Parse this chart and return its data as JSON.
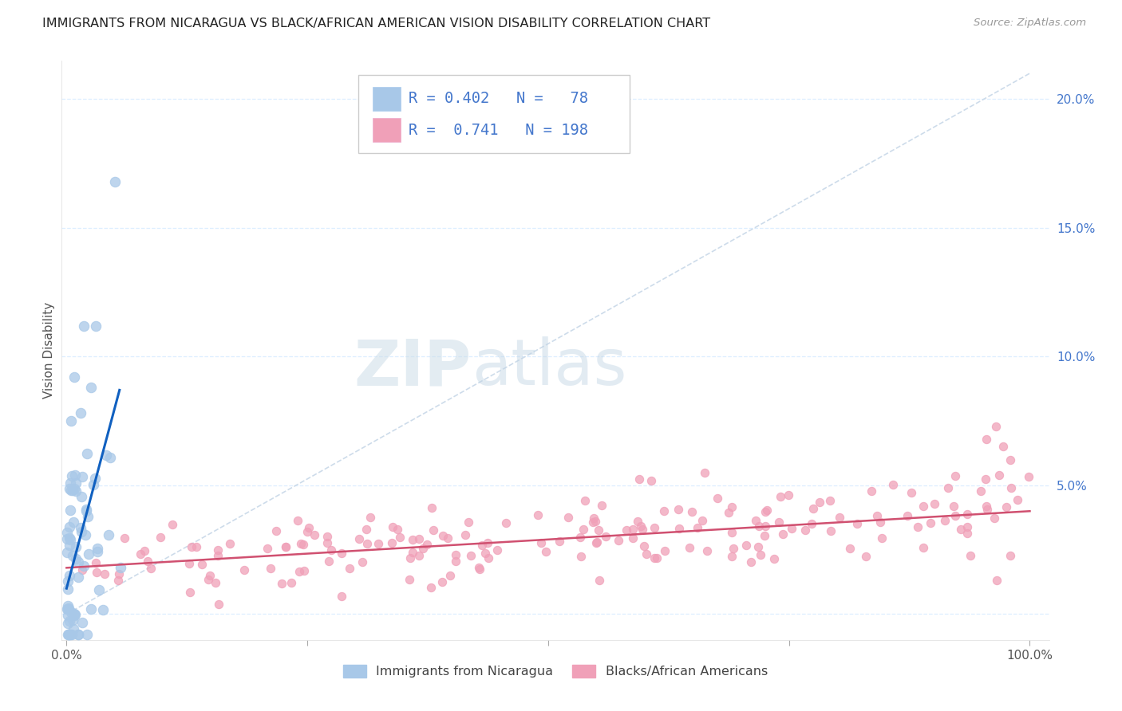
{
  "title": "IMMIGRANTS FROM NICARAGUA VS BLACK/AFRICAN AMERICAN VISION DISABILITY CORRELATION CHART",
  "source": "Source: ZipAtlas.com",
  "ylabel": "Vision Disability",
  "color_blue": "#a8c8e8",
  "color_pink": "#f0a0b8",
  "line_blue": "#1060c0",
  "line_pink": "#d05070",
  "diagonal_color": "#c8d8e8",
  "background_color": "#ffffff",
  "grid_color": "#ddeeff",
  "legend_text_color": "#4477cc",
  "title_color": "#222222",
  "source_color": "#999999",
  "ylabel_color": "#555555",
  "tick_color": "#4477cc",
  "xtick_color": "#555555"
}
